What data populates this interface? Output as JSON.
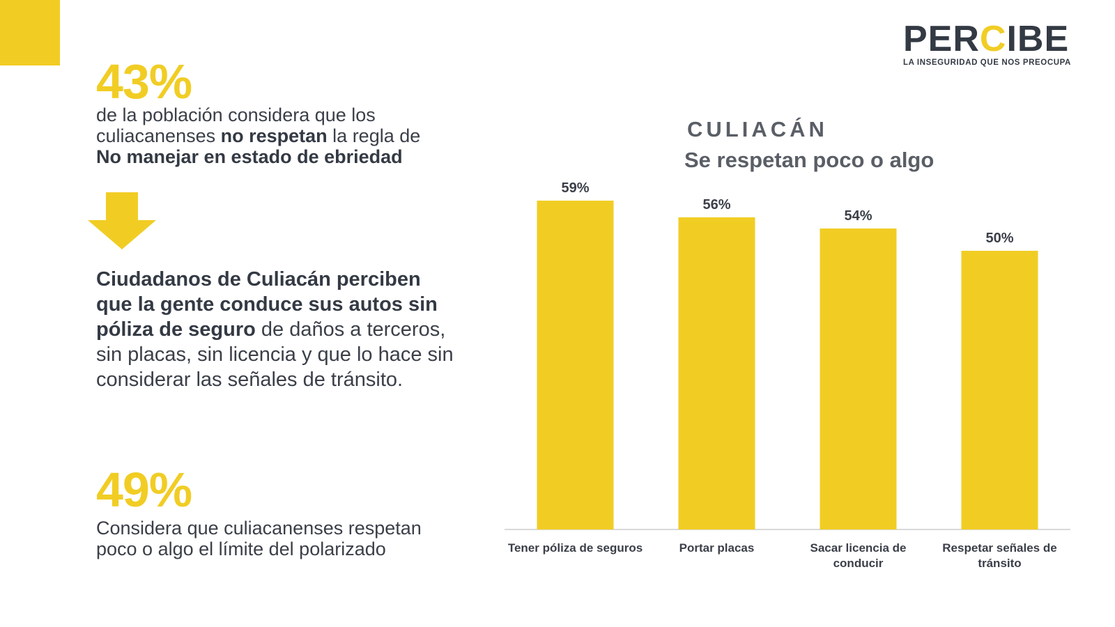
{
  "brand": {
    "logo_pre": "PER",
    "logo_hl": "C",
    "logo_post": "IBE",
    "tagline": "LA INSEGURIDAD QUE NOS PREOCUPA",
    "accent_color": "#f1cd24",
    "text_color": "#3b3f48"
  },
  "stat1": {
    "value": "43%",
    "line1": "de la población considera que los",
    "line2_pre": "culiacanenses ",
    "line2_bold": "no respetan",
    "line2_post": " la regla de",
    "line3_bold": "No manejar en estado de ebriedad"
  },
  "arrow_icon": "arrow-down-icon",
  "stat2": {
    "bold": "Ciudadanos de Culiacán perciben que la gente conduce sus autos sin póliza de seguro",
    "rest": " de daños a terceros, sin placas, sin licencia y que lo hace sin considerar las señales de tránsito."
  },
  "stat3": {
    "value": "49%",
    "line1": "Considera que culiacanenses respetan",
    "line2": "poco o algo el límite del polarizado"
  },
  "chart_data": {
    "type": "bar",
    "title": "CULIACÁN",
    "subtitle": "Se respetan poco o algo",
    "categories": [
      [
        "Tener póliza de seguros"
      ],
      [
        "Portar placas"
      ],
      [
        "Sacar licencia de",
        "conducir"
      ],
      [
        "Respetar señales de",
        "tránsito"
      ]
    ],
    "values": [
      59,
      56,
      54,
      50
    ],
    "value_labels": [
      "59%",
      "56%",
      "54%",
      "50%"
    ],
    "ylim": [
      0,
      60
    ],
    "grid": false,
    "color": "#f1cd24"
  }
}
